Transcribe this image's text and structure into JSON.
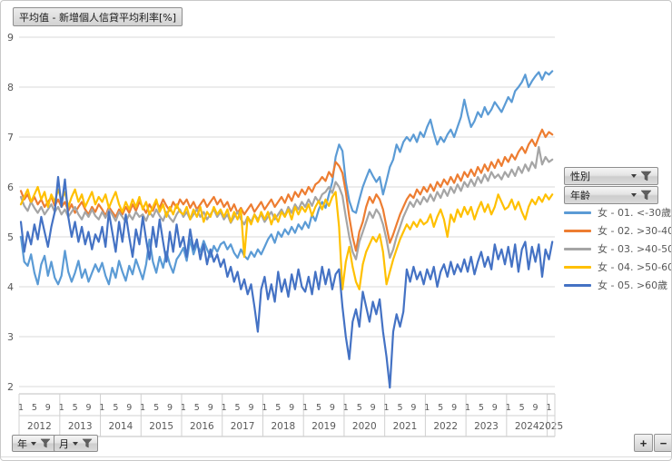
{
  "title_button": "平均值 - 新增個人信貸平均利率[%]",
  "filters": {
    "gender_label": "性別",
    "age_label": "年齡",
    "year_label": "年",
    "month_label": "月"
  },
  "drill_buttons": {
    "expand": "+",
    "collapse": "−"
  },
  "chart_data": {
    "type": "line",
    "title": "平均值 - 新增個人信貸平均利率[%]",
    "ylabel": "",
    "xlabel": "",
    "ylim": [
      2,
      9
    ],
    "y_ticks": [
      2,
      3,
      4,
      5,
      6,
      7,
      8,
      9
    ],
    "grid": true,
    "legend_position": "right",
    "x_unit": "month",
    "x_start": "2012-01",
    "x_end": "2025-02",
    "month_tick_labels": [
      "1",
      "5",
      "9"
    ],
    "years": [
      "2012",
      "2013",
      "2014",
      "2015",
      "2016",
      "2017",
      "2018",
      "2019",
      "2020",
      "2021",
      "2022",
      "2023",
      "2024",
      "2025"
    ],
    "series": [
      {
        "name": "女 - 01. <-30歲",
        "color": "#5B9BD5",
        "values": [
          5.0,
          4.5,
          4.42,
          4.65,
          4.28,
          4.05,
          4.45,
          4.62,
          4.22,
          4.5,
          4.18,
          4.05,
          4.22,
          4.72,
          4.3,
          4.1,
          4.28,
          4.52,
          4.18,
          4.35,
          4.1,
          4.28,
          4.45,
          4.3,
          4.48,
          4.22,
          4.05,
          4.38,
          4.18,
          4.52,
          4.3,
          4.12,
          4.42,
          4.25,
          4.55,
          4.35,
          4.15,
          4.45,
          4.95,
          4.5,
          4.28,
          4.6,
          4.38,
          4.7,
          4.45,
          4.28,
          4.55,
          4.65,
          4.78,
          4.52,
          4.95,
          4.65,
          4.85,
          4.7,
          4.92,
          4.75,
          4.6,
          4.82,
          4.7,
          4.85,
          4.9,
          4.75,
          4.85,
          4.68,
          4.58,
          4.75,
          4.62,
          4.55,
          4.7,
          4.6,
          4.75,
          4.65,
          4.8,
          4.95,
          5.05,
          4.88,
          5.1,
          5.0,
          5.15,
          5.05,
          5.2,
          5.08,
          5.25,
          5.15,
          5.3,
          5.18,
          5.45,
          5.32,
          5.55,
          5.7,
          5.58,
          5.85,
          6.1,
          6.6,
          6.85,
          6.72,
          6.1,
          5.72,
          5.52,
          5.48,
          5.75,
          6.0,
          6.18,
          6.35,
          6.22,
          6.1,
          6.2,
          5.85,
          6.12,
          6.4,
          6.55,
          6.85,
          6.7,
          6.9,
          7.0,
          6.92,
          7.05,
          6.9,
          7.1,
          7.0,
          7.2,
          7.35,
          7.08,
          6.85,
          7.0,
          6.9,
          7.05,
          7.15,
          7.0,
          7.2,
          7.4,
          7.75,
          7.45,
          7.2,
          7.32,
          7.5,
          7.4,
          7.6,
          7.45,
          7.55,
          7.7,
          7.6,
          7.5,
          7.65,
          7.8,
          7.7,
          7.92,
          8.0,
          8.1,
          8.25,
          8.0,
          8.12,
          8.22,
          8.3,
          8.15,
          8.3,
          8.25,
          8.32
        ]
      },
      {
        "name": "女 - 02. >30-40歲",
        "color": "#ED7D31",
        "values": [
          5.92,
          5.75,
          5.85,
          5.68,
          5.8,
          5.65,
          5.75,
          5.6,
          5.7,
          5.8,
          5.62,
          5.75,
          5.6,
          5.7,
          5.52,
          5.65,
          5.48,
          5.6,
          5.7,
          5.55,
          5.45,
          5.6,
          5.5,
          5.65,
          5.55,
          5.42,
          5.6,
          5.5,
          5.4,
          5.55,
          5.45,
          5.6,
          5.48,
          5.65,
          5.52,
          5.7,
          5.6,
          5.48,
          5.65,
          5.52,
          5.7,
          5.58,
          5.75,
          5.62,
          5.52,
          5.7,
          5.58,
          5.75,
          5.65,
          5.75,
          5.58,
          5.7,
          5.55,
          5.65,
          5.75,
          5.6,
          5.7,
          5.8,
          5.65,
          5.75,
          5.6,
          5.7,
          5.52,
          5.65,
          5.48,
          5.58,
          5.45,
          5.55,
          5.65,
          5.5,
          5.6,
          5.7,
          5.55,
          5.65,
          5.75,
          5.6,
          5.7,
          5.8,
          5.68,
          5.85,
          5.72,
          5.9,
          5.8,
          5.95,
          5.85,
          6.0,
          5.9,
          6.05,
          6.1,
          6.2,
          6.12,
          6.3,
          6.2,
          6.5,
          6.42,
          6.28,
          5.9,
          5.4,
          5.0,
          4.72,
          5.1,
          5.3,
          5.6,
          5.8,
          5.68,
          5.85,
          5.75,
          5.55,
          5.2,
          4.88,
          5.05,
          5.25,
          5.45,
          5.6,
          5.75,
          5.85,
          5.78,
          5.95,
          5.85,
          6.0,
          5.9,
          6.05,
          5.92,
          6.1,
          6.0,
          6.15,
          6.05,
          6.2,
          6.08,
          6.25,
          6.12,
          6.3,
          6.2,
          6.35,
          6.22,
          6.4,
          6.28,
          6.45,
          6.32,
          6.5,
          6.38,
          6.55,
          6.42,
          6.6,
          6.5,
          6.65,
          6.55,
          6.7,
          6.8,
          6.68,
          6.85,
          6.95,
          6.82,
          7.0,
          7.15,
          7.0,
          7.1,
          7.05
        ]
      },
      {
        "name": "女 - 03. >40-50歲",
        "color": "#A5A5A5",
        "values": [
          5.8,
          5.62,
          5.52,
          5.7,
          5.58,
          5.48,
          5.6,
          5.45,
          5.55,
          5.65,
          5.5,
          5.6,
          5.45,
          5.55,
          5.4,
          5.5,
          5.6,
          5.45,
          5.35,
          5.5,
          5.4,
          5.55,
          5.42,
          5.35,
          5.5,
          5.38,
          5.55,
          5.45,
          5.32,
          5.5,
          5.4,
          5.3,
          5.45,
          5.35,
          5.5,
          5.4,
          5.45,
          5.32,
          5.5,
          5.4,
          5.55,
          5.42,
          5.32,
          5.5,
          5.38,
          5.3,
          5.45,
          5.55,
          5.4,
          5.5,
          5.35,
          5.45,
          5.55,
          5.4,
          5.5,
          5.35,
          5.45,
          5.55,
          5.4,
          5.5,
          5.35,
          5.45,
          5.28,
          5.4,
          5.5,
          5.35,
          5.25,
          5.4,
          5.3,
          5.45,
          5.35,
          5.45,
          5.3,
          5.4,
          5.5,
          5.35,
          5.45,
          5.55,
          5.42,
          5.6,
          5.48,
          5.65,
          5.55,
          5.7,
          5.6,
          5.75,
          5.62,
          5.8,
          5.7,
          5.85,
          5.9,
          6.0,
          5.88,
          6.1,
          6.0,
          5.82,
          5.4,
          5.0,
          4.7,
          4.55,
          4.9,
          5.1,
          5.3,
          5.5,
          5.38,
          5.55,
          5.45,
          5.25,
          4.95,
          4.58,
          4.75,
          5.0,
          5.2,
          5.4,
          5.55,
          5.7,
          5.6,
          5.75,
          5.65,
          5.8,
          5.7,
          5.85,
          5.72,
          5.9,
          5.78,
          5.95,
          5.82,
          6.0,
          5.88,
          6.05,
          5.92,
          6.1,
          6.0,
          6.15,
          6.02,
          6.2,
          6.08,
          6.25,
          6.12,
          6.3,
          6.18,
          6.25,
          6.15,
          6.3,
          6.2,
          6.35,
          6.22,
          6.4,
          6.28,
          6.45,
          6.32,
          6.5,
          6.38,
          6.8,
          6.45,
          6.6,
          6.5,
          6.55
        ]
      },
      {
        "name": "女 - 04. >50-60歲",
        "color": "#FFC000",
        "values": [
          5.65,
          5.8,
          5.95,
          5.7,
          5.85,
          6.0,
          5.75,
          5.9,
          5.6,
          5.85,
          5.7,
          5.95,
          5.75,
          5.9,
          5.6,
          5.8,
          5.95,
          5.7,
          5.85,
          5.6,
          5.75,
          5.9,
          5.65,
          5.8,
          5.7,
          5.85,
          5.58,
          5.75,
          5.9,
          5.65,
          5.5,
          5.7,
          5.55,
          5.75,
          5.6,
          5.8,
          5.55,
          5.7,
          5.45,
          5.6,
          5.75,
          5.5,
          5.65,
          5.4,
          5.6,
          5.45,
          5.65,
          5.5,
          5.45,
          5.6,
          5.35,
          5.55,
          5.4,
          5.6,
          5.3,
          5.5,
          5.4,
          5.6,
          5.45,
          5.55,
          5.4,
          5.55,
          5.3,
          5.5,
          5.35,
          5.55,
          4.6,
          5.4,
          5.25,
          5.45,
          5.3,
          5.5,
          5.35,
          5.5,
          5.25,
          5.45,
          5.3,
          5.5,
          5.4,
          5.55,
          5.35,
          5.6,
          5.45,
          5.6,
          5.5,
          5.65,
          5.42,
          5.6,
          5.72,
          5.55,
          5.75,
          5.62,
          5.8,
          5.9,
          5.2,
          3.95,
          4.5,
          4.8,
          4.4,
          4.1,
          3.95,
          4.45,
          4.7,
          4.85,
          5.0,
          4.9,
          5.05,
          4.7,
          4.05,
          4.3,
          4.55,
          4.75,
          4.95,
          5.1,
          5.25,
          5.15,
          5.3,
          5.2,
          5.35,
          5.25,
          5.3,
          5.45,
          5.2,
          5.4,
          5.55,
          5.35,
          5.0,
          5.45,
          5.3,
          5.55,
          5.4,
          5.6,
          5.45,
          5.6,
          5.35,
          5.55,
          5.7,
          5.5,
          5.65,
          5.45,
          5.6,
          5.85,
          5.7,
          5.55,
          5.6,
          5.75,
          5.55,
          5.7,
          5.5,
          5.35,
          5.6,
          5.75,
          5.65,
          5.8,
          5.7,
          5.85,
          5.75,
          5.85
        ]
      },
      {
        "name": "女 - 05. >60歲",
        "color": "#4472C4",
        "values": [
          5.3,
          4.7,
          5.1,
          4.85,
          5.25,
          4.95,
          5.4,
          5.1,
          4.8,
          5.2,
          5.5,
          6.2,
          5.6,
          6.15,
          5.4,
          5.0,
          5.3,
          4.9,
          5.2,
          4.85,
          5.1,
          4.75,
          5.05,
          4.9,
          5.2,
          4.8,
          5.5,
          5.1,
          4.7,
          5.3,
          4.9,
          5.45,
          5.0,
          4.6,
          5.15,
          4.85,
          5.4,
          4.95,
          4.55,
          5.2,
          4.8,
          5.35,
          4.9,
          4.5,
          5.1,
          4.7,
          5.25,
          4.8,
          5.0,
          4.6,
          5.15,
          4.75,
          4.95,
          4.55,
          4.85,
          4.45,
          4.75,
          4.5,
          4.65,
          4.4,
          4.55,
          4.2,
          4.4,
          4.1,
          4.3,
          3.95,
          4.15,
          3.85,
          4.05,
          3.6,
          3.1,
          3.95,
          4.2,
          3.75,
          4.05,
          3.7,
          4.3,
          3.9,
          4.15,
          3.8,
          4.25,
          3.95,
          4.35,
          4.0,
          3.9,
          4.2,
          3.85,
          4.3,
          3.95,
          4.4,
          4.05,
          4.35,
          3.95,
          4.25,
          4.35,
          3.6,
          3.0,
          2.55,
          3.3,
          3.55,
          3.2,
          3.9,
          3.6,
          3.3,
          3.7,
          3.45,
          3.75,
          3.1,
          2.6,
          1.98,
          3.1,
          3.45,
          3.2,
          3.5,
          4.35,
          4.1,
          4.4,
          4.15,
          4.3,
          4.05,
          4.35,
          4.15,
          4.4,
          4.0,
          4.3,
          4.45,
          4.2,
          4.5,
          4.25,
          4.45,
          4.3,
          4.55,
          4.3,
          4.6,
          4.25,
          4.5,
          4.7,
          4.4,
          4.6,
          4.35,
          4.85,
          4.55,
          4.75,
          4.45,
          4.8,
          4.4,
          4.85,
          4.3,
          4.75,
          4.9,
          4.35,
          4.8,
          4.5,
          4.85,
          4.2,
          4.75,
          4.55,
          4.9
        ]
      }
    ]
  }
}
